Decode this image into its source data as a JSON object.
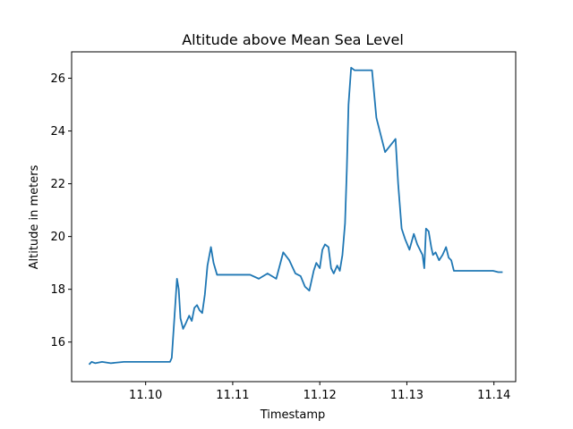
{
  "chart_data": {
    "type": "line",
    "title": "Altitude above Mean Sea Level",
    "xlabel": "Timestamp",
    "ylabel": "Altitude in meters",
    "xlim": [
      11.0915,
      11.1425
    ],
    "ylim": [
      14.5,
      27.0
    ],
    "x_ticks": [
      11.1,
      11.11,
      11.12,
      11.13,
      11.14
    ],
    "x_tick_labels": [
      "11.10",
      "11.11",
      "11.12",
      "11.13",
      "11.14"
    ],
    "y_ticks": [
      16,
      18,
      20,
      22,
      24,
      26
    ],
    "y_tick_labels": [
      "16",
      "18",
      "20",
      "22",
      "24",
      "26"
    ],
    "grid": false,
    "series": [
      {
        "color": "#1f77b4",
        "x": [
          11.0935,
          11.0938,
          11.0942,
          11.095,
          11.096,
          11.0975,
          11.1,
          11.1028,
          11.103,
          11.1033,
          11.1036,
          11.1038,
          11.104,
          11.1043,
          11.1046,
          11.105,
          11.1053,
          11.1056,
          11.1059,
          11.1062,
          11.1065,
          11.1068,
          11.1071,
          11.1075,
          11.1078,
          11.1082,
          11.1085,
          11.109,
          11.11,
          11.112,
          11.113,
          11.114,
          11.115,
          11.1158,
          11.1165,
          11.1172,
          11.1178,
          11.1183,
          11.1188,
          11.1193,
          11.1196,
          11.12,
          11.1203,
          11.1206,
          11.121,
          11.1213,
          11.1216,
          11.122,
          11.1223,
          11.1226,
          11.1229,
          11.1231,
          11.1233,
          11.1236,
          11.124,
          11.1245,
          11.125,
          11.1255,
          11.126,
          11.1265,
          11.1275,
          11.1287,
          11.129,
          11.1294,
          11.1298,
          11.1303,
          11.1308,
          11.1312,
          11.1318,
          11.132,
          11.1322,
          11.1325,
          11.1328,
          11.133,
          11.1333,
          11.1337,
          11.1341,
          11.1345,
          11.1348,
          11.1351,
          11.1354,
          11.1357,
          11.136,
          11.1365,
          11.1372,
          11.138,
          11.139,
          11.1399,
          11.1405,
          11.141
        ],
        "y": [
          15.15,
          15.25,
          15.2,
          15.25,
          15.2,
          15.25,
          15.25,
          15.25,
          15.4,
          16.9,
          18.4,
          18.0,
          16.9,
          16.5,
          16.7,
          17.0,
          16.8,
          17.3,
          17.4,
          17.2,
          17.1,
          17.8,
          18.9,
          19.6,
          19.0,
          18.55,
          18.55,
          18.55,
          18.55,
          18.55,
          18.4,
          18.6,
          18.4,
          19.4,
          19.1,
          18.6,
          18.5,
          18.1,
          17.95,
          18.7,
          19.0,
          18.8,
          19.5,
          19.7,
          19.6,
          18.8,
          18.6,
          18.9,
          18.7,
          19.3,
          20.5,
          22.5,
          25.0,
          26.4,
          26.3,
          26.3,
          26.3,
          26.3,
          26.3,
          24.5,
          23.2,
          23.7,
          22.0,
          20.3,
          19.9,
          19.5,
          20.1,
          19.7,
          19.3,
          18.8,
          20.3,
          20.2,
          19.6,
          19.3,
          19.4,
          19.1,
          19.3,
          19.6,
          19.2,
          19.1,
          18.7,
          18.7,
          18.7,
          18.7,
          18.7,
          18.7,
          18.7,
          18.7,
          18.65,
          18.65
        ]
      }
    ]
  }
}
